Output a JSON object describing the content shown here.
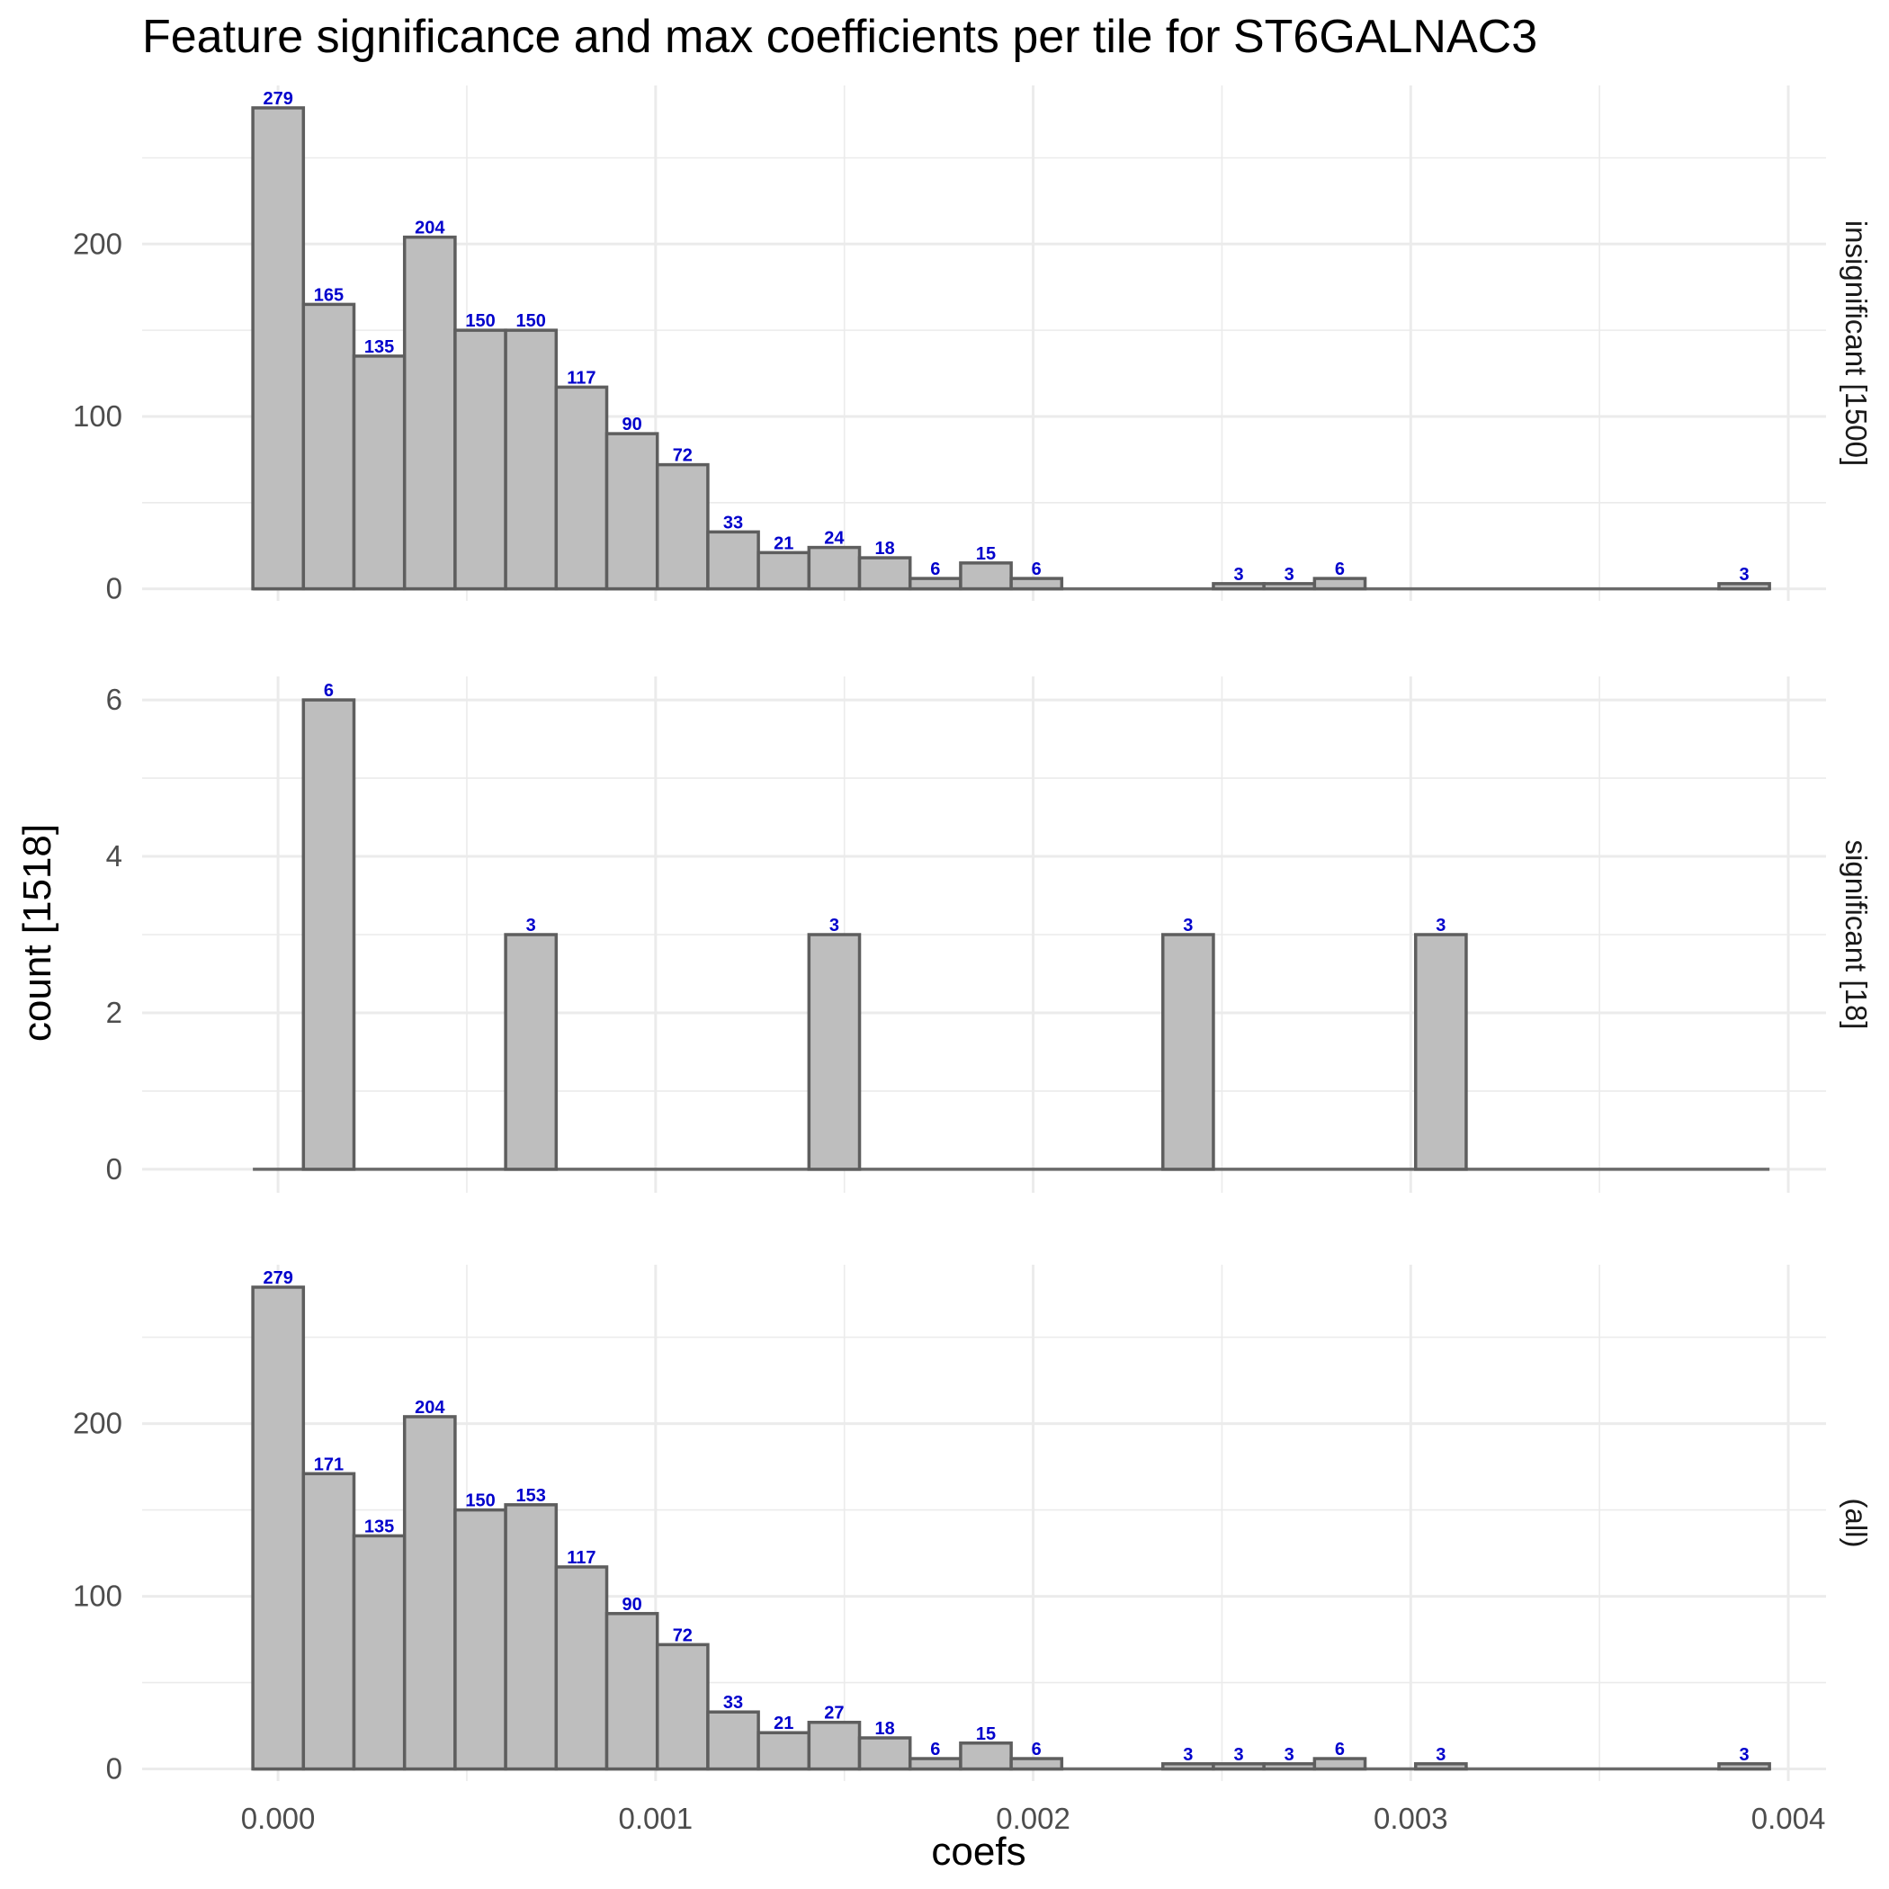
{
  "chart_data": {
    "type": "bar",
    "title": "Feature significance and max coefficients per tile for ST6GALNAC3",
    "xlabel": "coefs",
    "ylabel": "count [1518]",
    "xlim": [
      -0.00036,
      0.0041
    ],
    "x_ticks": [
      "0.000",
      "0.001",
      "0.002",
      "0.003",
      "0.004"
    ],
    "x_tick_values": [
      0,
      0.001,
      0.002,
      0.003,
      0.004
    ],
    "bin_width": 0.0001339,
    "bin_start": -6.67e-05,
    "bin_count": 30,
    "grid": true,
    "label_color": "#0000cc",
    "bar_fill": "#bebebe",
    "bar_stroke": "#5e5e5e",
    "panels": [
      {
        "label": "insignificant [1500]",
        "ylim": [
          -7,
          292
        ],
        "y_ticks": [
          "0",
          "100",
          "200"
        ],
        "y_tick_values": [
          0,
          100,
          200
        ],
        "y_minor_values": [
          50,
          150,
          250
        ],
        "values": [
          279,
          165,
          135,
          204,
          150,
          150,
          117,
          90,
          72,
          33,
          21,
          24,
          18,
          6,
          15,
          6,
          0,
          0,
          0,
          3,
          3,
          6,
          0,
          0,
          0,
          0,
          0,
          0,
          0,
          3
        ],
        "bar_labels": [
          "279",
          "165",
          "135",
          "204",
          "150",
          "150",
          "117",
          "90",
          "72",
          "33",
          "21",
          "24",
          "18",
          "6",
          "15",
          "6",
          "",
          "",
          "",
          "3",
          "3",
          "6",
          "",
          "",
          "",
          "",
          "",
          "",
          "",
          "3"
        ]
      },
      {
        "label": "significant [18]",
        "ylim": [
          -0.3,
          6.3
        ],
        "y_ticks": [
          "0",
          "2",
          "4",
          "6"
        ],
        "y_tick_values": [
          0,
          2,
          4,
          6
        ],
        "y_minor_values": [
          1,
          3,
          5
        ],
        "values": [
          0,
          6,
          0,
          0,
          0,
          3,
          0,
          0,
          0,
          0,
          0,
          3,
          0,
          0,
          0,
          0,
          0,
          0,
          3,
          0,
          0,
          0,
          0,
          3,
          0,
          0,
          0,
          0,
          0,
          0
        ],
        "bar_labels": [
          "",
          "6",
          "",
          "",
          "",
          "3",
          "",
          "",
          "",
          "",
          "",
          "3",
          "",
          "",
          "",
          "",
          "",
          "",
          "3",
          "",
          "",
          "",
          "",
          "3",
          "",
          "",
          "",
          "",
          "",
          ""
        ]
      },
      {
        "label": "(all)",
        "ylim": [
          -7,
          292
        ],
        "y_ticks": [
          "0",
          "100",
          "200"
        ],
        "y_tick_values": [
          0,
          100,
          200
        ],
        "y_minor_values": [
          50,
          150,
          250
        ],
        "values": [
          279,
          171,
          135,
          204,
          150,
          153,
          117,
          90,
          72,
          33,
          21,
          27,
          18,
          6,
          15,
          6,
          0,
          0,
          3,
          3,
          3,
          6,
          0,
          3,
          0,
          0,
          0,
          0,
          0,
          3
        ],
        "bar_labels": [
          "279",
          "171",
          "135",
          "204",
          "150",
          "153",
          "117",
          "90",
          "72",
          "33",
          "21",
          "27",
          "18",
          "6",
          "15",
          "6",
          "",
          "",
          "3",
          "3",
          "3",
          "6",
          "",
          "3",
          "",
          "",
          "",
          "",
          "",
          "3"
        ]
      }
    ]
  }
}
